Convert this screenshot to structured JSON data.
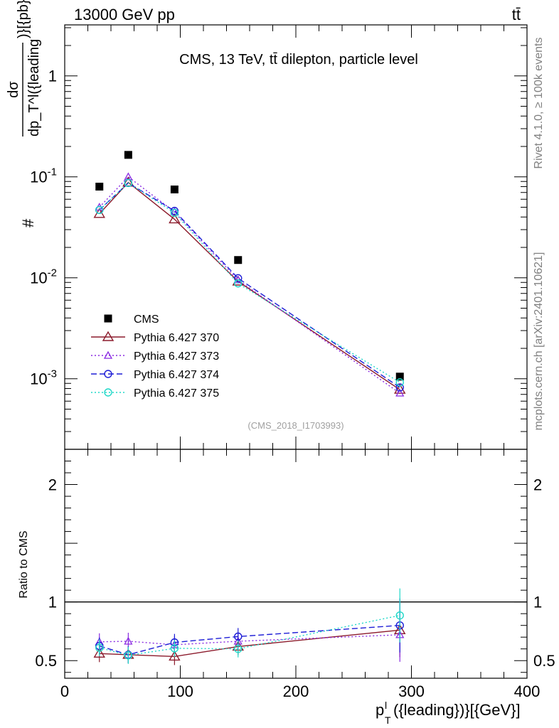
{
  "header": {
    "left": "13000 GeV pp",
    "right": "tt̄"
  },
  "side_labels": {
    "rivet": "Rivet 4.1.0, ≥ 100k events",
    "mcplots": "mcplots.cern.ch [arXiv:2401.10621]"
  },
  "chart_data": [
    {
      "type": "line",
      "title": "CMS, 13 TeV, tt̄ dilepton, particle level",
      "ylabel": "#dσ/dp_T^l({leading})}[{pb}/{GeV}]",
      "ylabel_parts": {
        "hash": "#",
        "numerator": "dσ",
        "denominator": "dp_T^l({leading",
        "suffix": ")}[{pb}/{GeV}]"
      },
      "yscale": "log",
      "ylim": [
        0.0002,
        3.2
      ],
      "xlim": [
        0,
        400
      ],
      "yticks": [
        {
          "value": 0.001,
          "base": "10",
          "exp": "-3"
        },
        {
          "value": 0.01,
          "base": "10",
          "exp": "-2"
        },
        {
          "value": 0.1,
          "base": "10",
          "exp": "-1"
        },
        {
          "value": 1,
          "base": "1",
          "exp": ""
        }
      ],
      "legend_position": "center-left",
      "watermark": "(CMS_2018_I1703993)",
      "x": [
        30,
        55,
        95,
        150,
        290
      ],
      "series": [
        {
          "name": "CMS",
          "color": "#000000",
          "marker": "square",
          "dash": "none",
          "values": [
            0.08,
            0.165,
            0.075,
            0.015,
            0.00105
          ]
        },
        {
          "name": "Pythia 6.427 370",
          "color": "#8b1a2b",
          "marker": "triangle-open",
          "dash": "solid",
          "values": [
            0.043,
            0.088,
            0.038,
            0.0092,
            0.00078
          ]
        },
        {
          "name": "Pythia 6.427 373",
          "color": "#8a2be2",
          "marker": "triangle-small",
          "dash": "dotted",
          "values": [
            0.05,
            0.1,
            0.045,
            0.0095,
            0.00072
          ]
        },
        {
          "name": "Pythia 6.427 374",
          "color": "#1d1dd6",
          "marker": "circle-open",
          "dash": "dashed",
          "values": [
            0.047,
            0.087,
            0.046,
            0.0099,
            0.00082
          ]
        },
        {
          "name": "Pythia 6.427 375",
          "color": "#20d8c8",
          "marker": "circle-open",
          "dash": "dotted",
          "values": [
            0.047,
            0.087,
            0.044,
            0.0088,
            0.00092
          ]
        }
      ]
    },
    {
      "type": "line",
      "ylabel": "Ratio to CMS",
      "xlabel": "p_T^l({leading})}[{GeV}]",
      "xlabel_parts": {
        "main": "p",
        "sub": "T",
        "sup": "l",
        "rest": "({leading})}[{GeV}]"
      },
      "ylim": [
        0.35,
        2.3
      ],
      "xlim": [
        0,
        400
      ],
      "yticks": [
        0.5,
        1,
        2
      ],
      "ytick_labels": [
        "0.5",
        "1",
        "2"
      ],
      "xticks": [
        0,
        100,
        200,
        300,
        400
      ],
      "xtick_labels": [
        "0",
        "100",
        "200",
        "300",
        "400"
      ],
      "reference_line": 1,
      "x": [
        30,
        55,
        95,
        150,
        290
      ],
      "series": [
        {
          "name": "Pythia 6.427 370",
          "values": [
            0.56,
            0.55,
            0.535,
            0.62,
            0.76
          ]
        },
        {
          "name": "Pythia 6.427 373",
          "values": [
            0.66,
            0.665,
            0.635,
            0.665,
            0.72
          ]
        },
        {
          "name": "Pythia 6.427 374",
          "values": [
            0.625,
            0.55,
            0.655,
            0.705,
            0.8
          ]
        },
        {
          "name": "Pythia 6.427 375",
          "values": [
            0.61,
            0.545,
            0.605,
            0.6,
            0.885
          ]
        }
      ]
    }
  ]
}
